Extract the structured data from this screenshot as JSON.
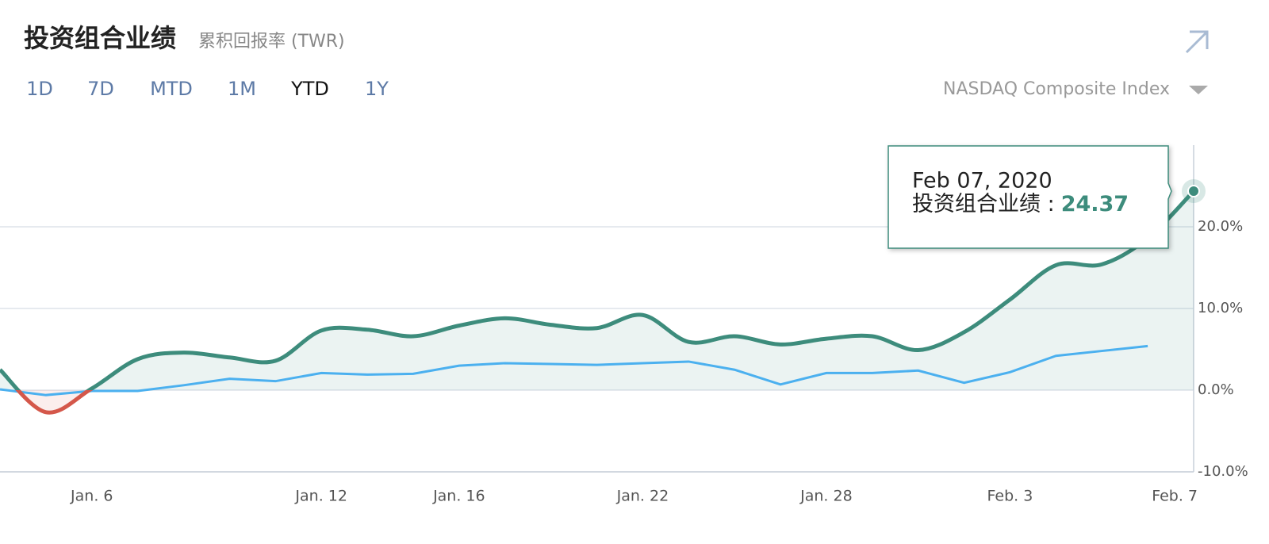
{
  "title": "投资组合业绩",
  "subtitle": "累积回报率 (TWR)",
  "tabs": [
    "1D",
    "7D",
    "MTD",
    "1M",
    "YTD",
    "1Y"
  ],
  "active_tab": "YTD",
  "tooltip": {
    "date": "Feb 07, 2020",
    "label": "投资组合业绩 :"
  },
  "chart_data": {
    "type": "line",
    "categories": [
      null,
      null,
      "Jan. 6",
      null,
      null,
      null,
      null,
      "Jan. 12",
      null,
      null,
      "Jan. 16",
      null,
      null,
      null,
      "Jan. 22",
      null,
      null,
      null,
      "Jan. 28",
      null,
      null,
      null,
      "Feb. 3",
      null,
      null,
      null,
      "Feb. 7"
    ],
    "series": [
      {
        "name": "投资组合业绩",
        "color": "#3d8c7c",
        "negative_color": "#d4574a",
        "values": [
          2.5,
          -2.7,
          0.2,
          3.8,
          4.6,
          4.0,
          3.6,
          7.3,
          7.4,
          6.6,
          7.9,
          8.8,
          8.0,
          7.6,
          9.2,
          5.9,
          6.6,
          5.6,
          6.3,
          6.6,
          4.9,
          7.1,
          11.1,
          15.3,
          15.4,
          18.6,
          24.37
        ]
      },
      {
        "name": "NASDAQ Composite Index",
        "color": "#4bb0ef",
        "values": [
          0.1,
          -0.6,
          -0.1,
          -0.1,
          0.6,
          1.4,
          1.1,
          2.1,
          1.9,
          2.0,
          3.0,
          3.3,
          3.2,
          3.1,
          3.3,
          3.5,
          2.5,
          0.7,
          2.1,
          2.1,
          2.4,
          0.9,
          2.2,
          4.2,
          4.8,
          5.4,
          null
        ]
      }
    ],
    "ylim": [
      -10,
      30
    ],
    "yticks": [
      {
        "value": -10,
        "label": "-10.0%"
      },
      {
        "value": 0,
        "label": "0.0%"
      },
      {
        "value": 10,
        "label": "10.0%"
      },
      {
        "value": 20,
        "label": "20.0%"
      }
    ],
    "grid": true
  }
}
